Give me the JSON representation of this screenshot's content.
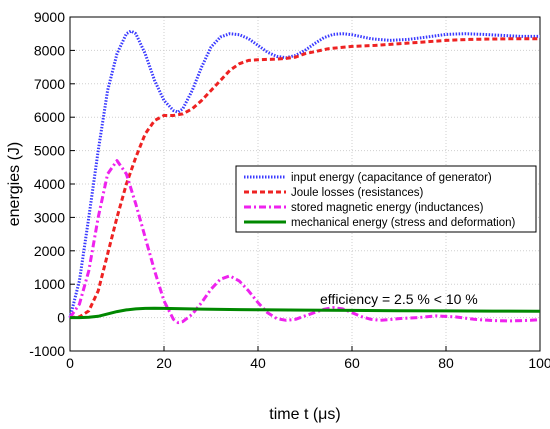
{
  "chart_data": {
    "type": "line",
    "xlabel": "time t (μs)",
    "ylabel": "energies (J)",
    "xlim": [
      0,
      100
    ],
    "ylim": [
      -1000,
      9000
    ],
    "xticks": [
      0,
      20,
      40,
      60,
      80,
      100
    ],
    "yticks": [
      -1000,
      0,
      1000,
      2000,
      3000,
      4000,
      5000,
      6000,
      7000,
      8000,
      9000
    ],
    "grid": true,
    "legend_position": "center-right",
    "annotation": "efficiency = 2.5 % < 10 %",
    "series": [
      {
        "name": "input energy (capacitance of generator)",
        "color": "#3a3aff",
        "style": "dotted",
        "x": [
          0,
          2,
          4,
          6,
          8,
          10,
          12,
          13,
          14,
          16,
          18,
          20,
          22,
          23,
          24,
          26,
          28,
          30,
          32,
          34,
          36,
          38,
          40,
          42,
          44,
          46,
          48,
          50,
          52,
          54,
          56,
          58,
          60,
          64,
          68,
          72,
          76,
          80,
          84,
          88,
          92,
          96,
          100
        ],
        "y": [
          0,
          1100,
          3000,
          5000,
          6800,
          7900,
          8500,
          8580,
          8500,
          7900,
          7100,
          6500,
          6200,
          6150,
          6250,
          6800,
          7500,
          8100,
          8400,
          8500,
          8470,
          8350,
          8150,
          7950,
          7820,
          7780,
          7850,
          8000,
          8200,
          8380,
          8480,
          8500,
          8470,
          8350,
          8300,
          8330,
          8400,
          8480,
          8500,
          8480,
          8450,
          8420,
          8420
        ]
      },
      {
        "name": "Joule losses (resistances)",
        "color": "#ee2222",
        "style": "dashed",
        "x": [
          0,
          2,
          4,
          6,
          8,
          10,
          12,
          14,
          16,
          18,
          20,
          22,
          24,
          26,
          28,
          30,
          32,
          34,
          36,
          38,
          40,
          42,
          44,
          46,
          48,
          50,
          55,
          60,
          65,
          70,
          75,
          80,
          85,
          90,
          95,
          100
        ],
        "y": [
          0,
          20,
          200,
          800,
          1900,
          3000,
          4000,
          4800,
          5500,
          5900,
          6050,
          6050,
          6100,
          6250,
          6500,
          6800,
          7100,
          7400,
          7600,
          7700,
          7720,
          7730,
          7740,
          7760,
          7800,
          7900,
          8050,
          8120,
          8150,
          8200,
          8250,
          8300,
          8330,
          8340,
          8350,
          8350
        ]
      },
      {
        "name": "stored magnetic energy (inductances)",
        "color": "#ee22ee",
        "style": "dashdot",
        "x": [
          0,
          2,
          4,
          6,
          8,
          10,
          12,
          14,
          16,
          18,
          20,
          22,
          23,
          24,
          26,
          28,
          30,
          32,
          34,
          36,
          38,
          40,
          42,
          44,
          46,
          48,
          50,
          52,
          54,
          56,
          58,
          60,
          62,
          64,
          66,
          68,
          70,
          74,
          78,
          82,
          86,
          90,
          94,
          98,
          100
        ],
        "y": [
          0,
          400,
          1400,
          3000,
          4300,
          4700,
          4300,
          3400,
          2400,
          1400,
          500,
          -50,
          -150,
          -120,
          100,
          450,
          850,
          1150,
          1250,
          1100,
          800,
          450,
          150,
          -30,
          -80,
          -50,
          50,
          150,
          250,
          300,
          260,
          150,
          30,
          -50,
          -80,
          -60,
          -30,
          0,
          50,
          20,
          -50,
          -90,
          -100,
          -80,
          -60
        ]
      },
      {
        "name": "mechanical energy (stress and deformation)",
        "color": "#008800",
        "style": "solid",
        "x": [
          0,
          2,
          4,
          6,
          8,
          10,
          12,
          14,
          16,
          18,
          20,
          24,
          28,
          32,
          36,
          40,
          50,
          60,
          70,
          80,
          90,
          100
        ],
        "y": [
          0,
          0,
          10,
          40,
          110,
          180,
          230,
          260,
          275,
          280,
          275,
          265,
          255,
          245,
          240,
          235,
          225,
          215,
          205,
          200,
          195,
          190
        ]
      }
    ]
  }
}
